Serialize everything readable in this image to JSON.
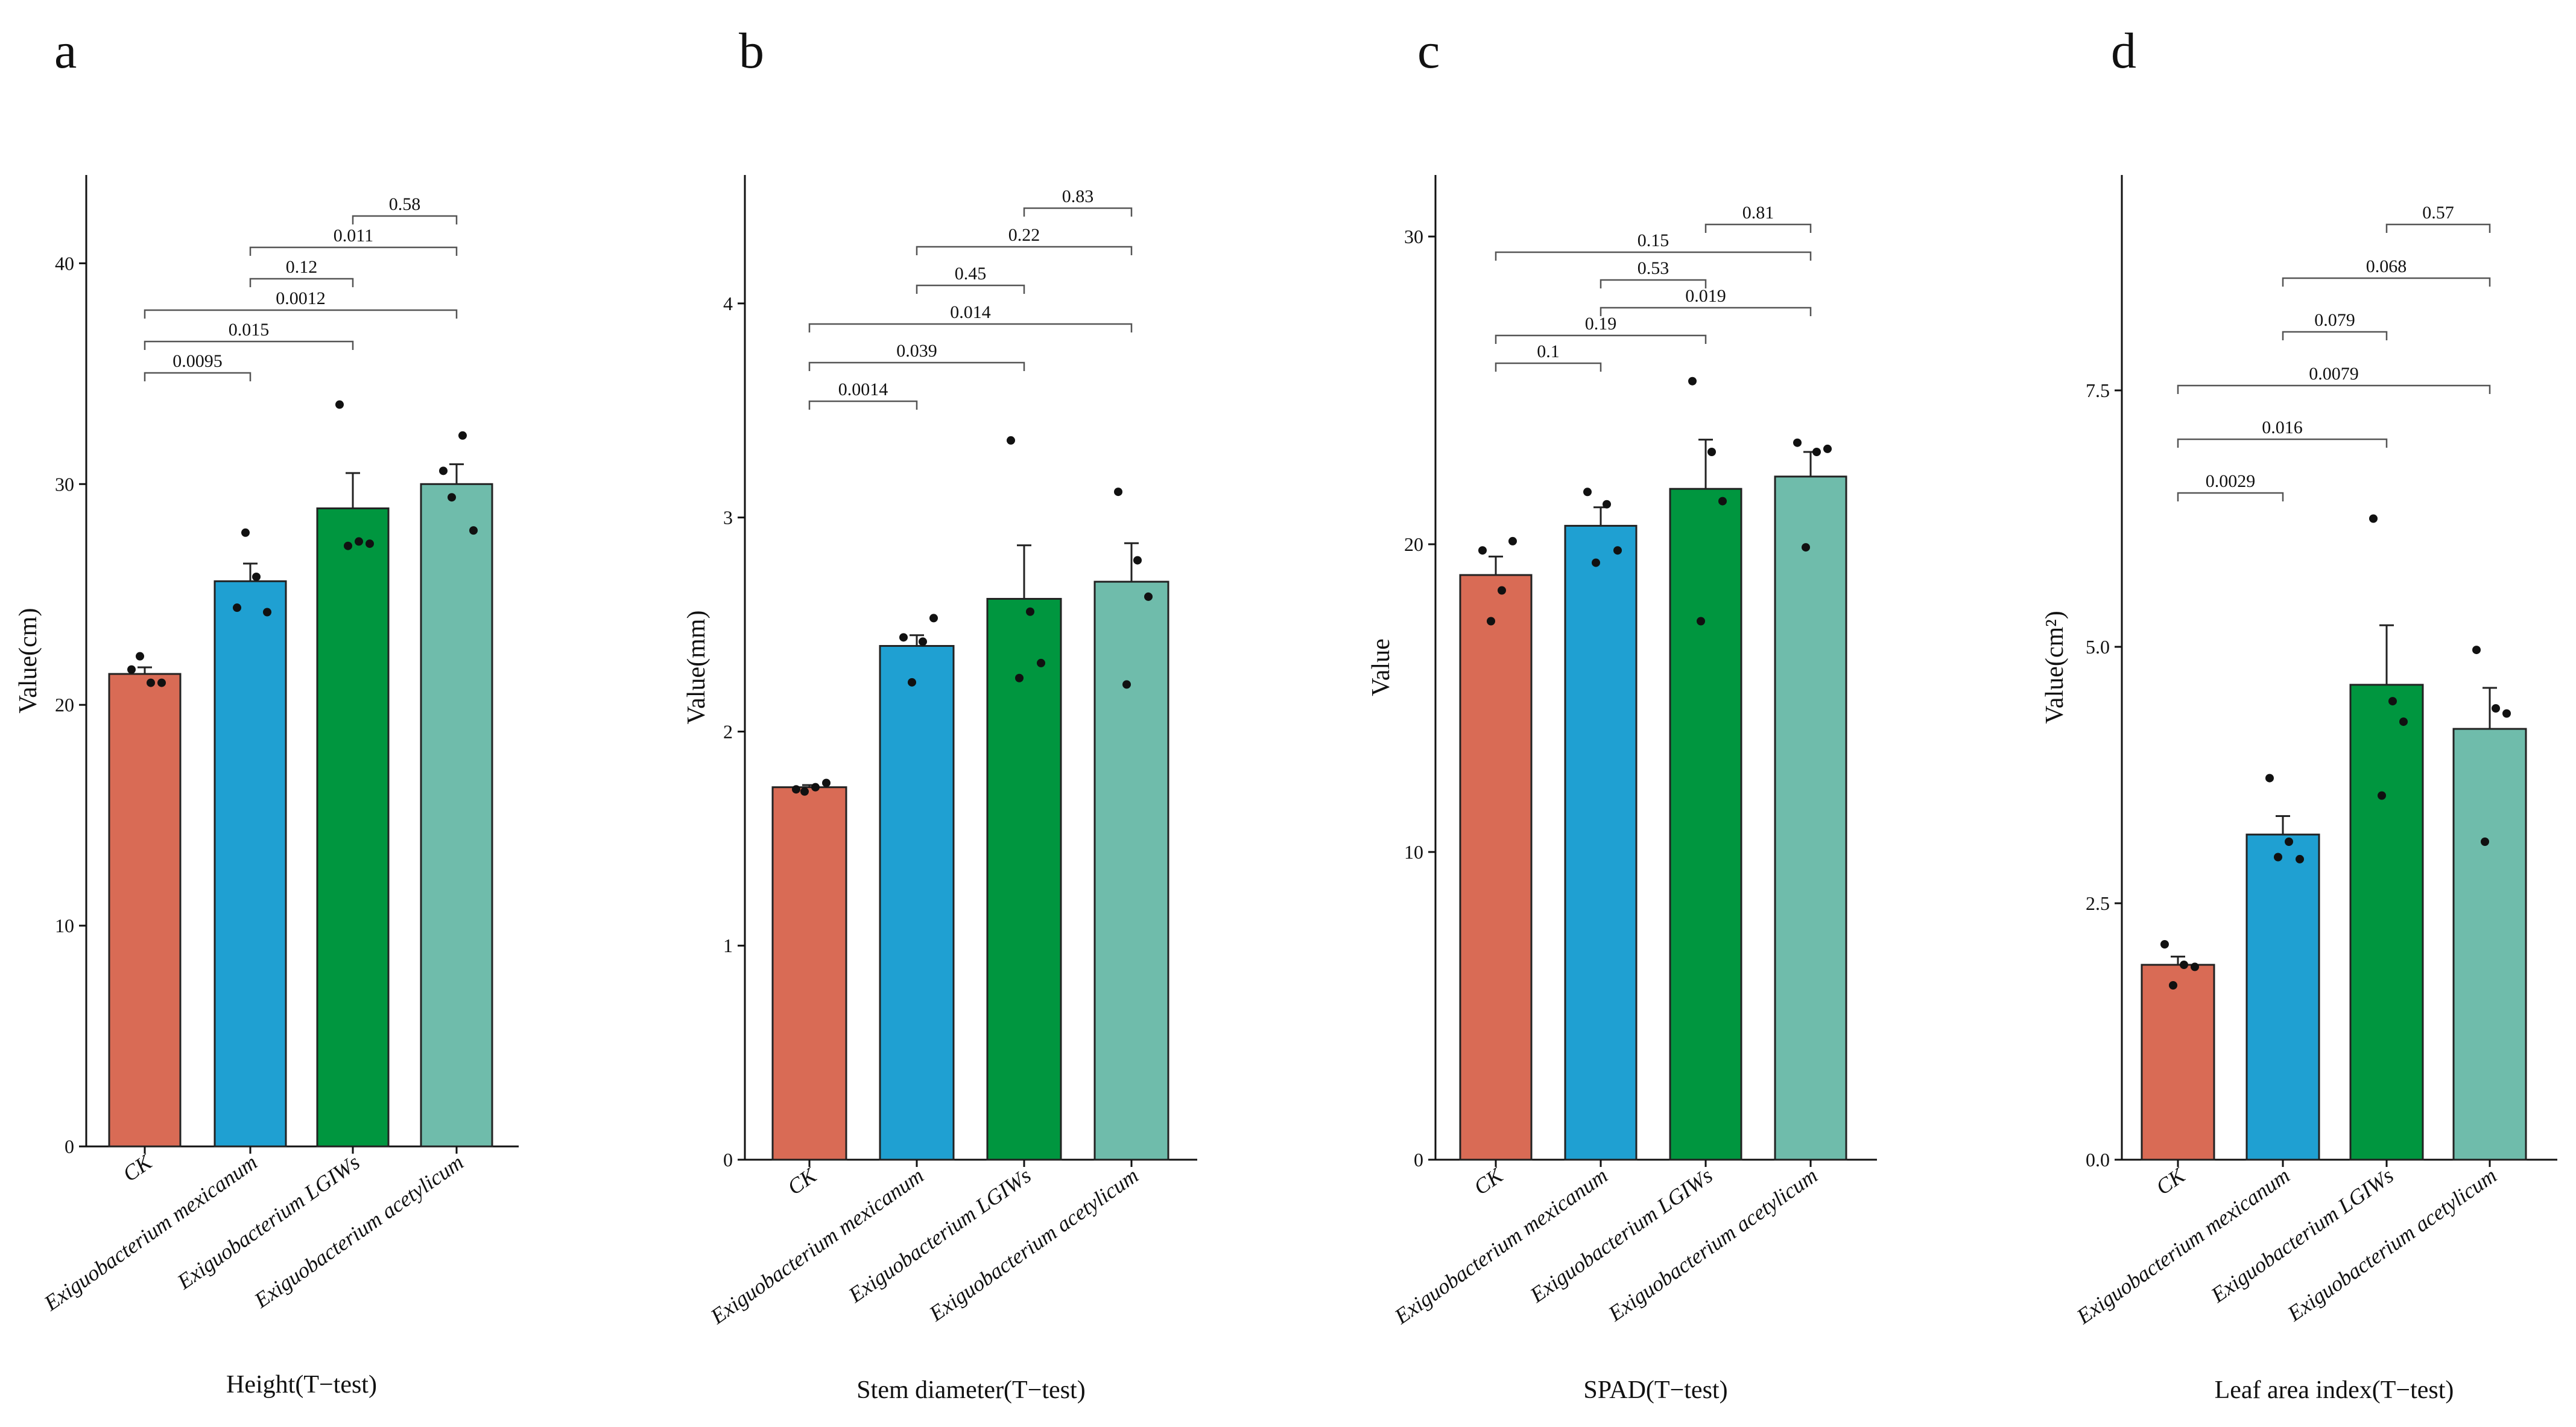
{
  "chart_data": [
    {
      "type": "bar",
      "panel": "a",
      "xlabel": "Height(T−test)",
      "ylabel": "Value(cm)",
      "ylim": [
        0,
        44
      ],
      "yticks": [
        0,
        10,
        20,
        30,
        40
      ],
      "ytick_labels": [
        "0",
        "10",
        "20",
        "30",
        "40"
      ],
      "categories": [
        "CK",
        "Exiguobacterium mexicanum",
        "Exiguobacterium LGIWs",
        "Exiguobacterium acetylicum"
      ],
      "colors": [
        "#D96B55",
        "#1FA0D2",
        "#00963F",
        "#6FBCAB"
      ],
      "values": [
        21.4,
        25.6,
        28.9,
        30.0
      ],
      "errors": [
        0.3,
        0.8,
        1.6,
        0.9
      ],
      "points": [
        [
          21.6,
          21.0,
          21.0,
          22.2
        ],
        [
          24.4,
          25.8,
          24.2,
          27.8
        ],
        [
          33.6,
          27.4,
          27.3,
          27.2
        ],
        [
          30.6,
          32.2,
          27.9,
          29.4
        ]
      ],
      "comparisons": [
        {
          "from": 0,
          "to": 1,
          "p": "0.0095"
        },
        {
          "from": 0,
          "to": 2,
          "p": "0.015"
        },
        {
          "from": 0,
          "to": 3,
          "p": "0.0012"
        },
        {
          "from": 1,
          "to": 2,
          "p": "0.12"
        },
        {
          "from": 1,
          "to": 3,
          "p": "0.011"
        },
        {
          "from": 2,
          "to": 3,
          "p": "0.58"
        }
      ]
    },
    {
      "type": "bar",
      "panel": "b",
      "xlabel": "Stem diameter(T−test)",
      "ylabel": "Value(mm)",
      "ylim": [
        0,
        4.6
      ],
      "yticks": [
        0,
        1,
        2,
        3,
        4
      ],
      "ytick_labels": [
        "0",
        "1",
        "2",
        "3",
        "4"
      ],
      "categories": [
        "CK",
        "Exiguobacterium mexicanum",
        "Exiguobacterium LGIWs",
        "Exiguobacterium acetylicum"
      ],
      "colors": [
        "#D96B55",
        "#1FA0D2",
        "#00963F",
        "#6FBCAB"
      ],
      "values": [
        1.74,
        2.4,
        2.62,
        2.7
      ],
      "errors": [
        0.01,
        0.05,
        0.25,
        0.18
      ],
      "points": [
        [
          1.73,
          1.74,
          1.76,
          1.72
        ],
        [
          2.44,
          2.42,
          2.53,
          2.23
        ],
        [
          3.36,
          2.56,
          2.32,
          2.25
        ],
        [
          3.12,
          2.8,
          2.63,
          2.22
        ]
      ],
      "comparisons": [
        {
          "from": 0,
          "to": 1,
          "p": "0.0014"
        },
        {
          "from": 0,
          "to": 2,
          "p": "0.039"
        },
        {
          "from": 0,
          "to": 3,
          "p": "0.014"
        },
        {
          "from": 1,
          "to": 2,
          "p": "0.45"
        },
        {
          "from": 1,
          "to": 3,
          "p": "0.22"
        },
        {
          "from": 2,
          "to": 3,
          "p": "0.83"
        }
      ]
    },
    {
      "type": "bar",
      "panel": "c",
      "xlabel": "SPAD(T−test)",
      "ylabel": "Value",
      "ylim": [
        0,
        32
      ],
      "yticks": [
        0,
        10,
        20,
        30
      ],
      "ytick_labels": [
        "0",
        "10",
        "20",
        "30"
      ],
      "categories": [
        "CK",
        "Exiguobacterium mexicanum",
        "Exiguobacterium LGIWs",
        "Exiguobacterium acetylicum"
      ],
      "colors": [
        "#D96B55",
        "#1FA0D2",
        "#00963F",
        "#6FBCAB"
      ],
      "values": [
        19.0,
        20.6,
        21.8,
        22.2
      ],
      "errors": [
        0.6,
        0.6,
        1.6,
        0.8
      ],
      "points": [
        [
          19.8,
          18.5,
          20.1,
          17.5
        ],
        [
          21.7,
          21.3,
          19.8,
          19.4
        ],
        [
          25.3,
          23.0,
          21.4,
          17.5
        ],
        [
          23.3,
          23.0,
          23.1,
          19.9
        ]
      ],
      "comparisons": [
        {
          "from": 0,
          "to": 1,
          "p": "0.1"
        },
        {
          "from": 0,
          "to": 2,
          "p": "0.19"
        },
        {
          "from": 1,
          "to": 2,
          "p": "0.53"
        },
        {
          "from": 1,
          "to": 3,
          "p": "0.019"
        },
        {
          "from": 0,
          "to": 3,
          "p": "0.15"
        },
        {
          "from": 2,
          "to": 3,
          "p": "0.81"
        }
      ]
    },
    {
      "type": "bar",
      "panel": "d",
      "xlabel": "Leaf area index(T−test)",
      "ylabel": "Value(cm²)",
      "ylim": [
        0,
        9.6
      ],
      "yticks": [
        0,
        2.5,
        5,
        7.5
      ],
      "ytick_labels": [
        "0.0",
        "2.5",
        "5.0",
        "7.5"
      ],
      "categories": [
        "CK",
        "Exiguobacterium mexicanum",
        "Exiguobacterium LGIWs",
        "Exiguobacterium acetylicum"
      ],
      "colors": [
        "#D96B55",
        "#1FA0D2",
        "#00963F",
        "#6FBCAB"
      ],
      "values": [
        1.9,
        3.17,
        4.63,
        4.2
      ],
      "errors": [
        0.08,
        0.18,
        0.58,
        0.4
      ],
      "points": [
        [
          2.1,
          1.9,
          1.88,
          1.7
        ],
        [
          3.72,
          3.1,
          2.93,
          2.95
        ],
        [
          6.25,
          4.47,
          4.27,
          3.55
        ],
        [
          4.97,
          4.4,
          4.35,
          3.1
        ]
      ],
      "comparisons": [
        {
          "from": 0,
          "to": 1,
          "p": "0.0029"
        },
        {
          "from": 0,
          "to": 2,
          "p": "0.016"
        },
        {
          "from": 0,
          "to": 3,
          "p": "0.0079"
        },
        {
          "from": 1,
          "to": 2,
          "p": "0.079"
        },
        {
          "from": 1,
          "to": 3,
          "p": "0.068"
        },
        {
          "from": 2,
          "to": 3,
          "p": "0.57"
        }
      ]
    }
  ]
}
